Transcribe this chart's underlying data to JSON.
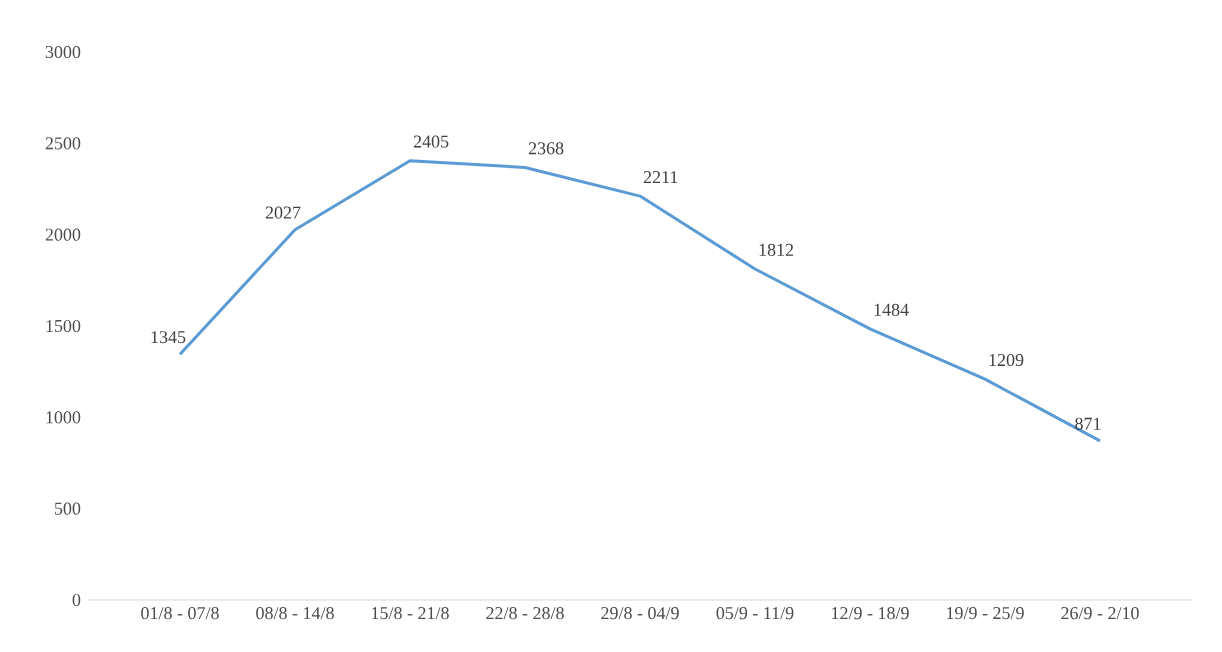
{
  "chart_data": {
    "type": "line",
    "categories": [
      "01/8 - 07/8",
      "08/8 - 14/8",
      "15/8 - 21/8",
      "22/8 - 28/8",
      "29/8 - 04/9",
      "05/9 - 11/9",
      "12/9 - 18/9",
      "19/9 - 25/9",
      "26/9 - 2/10"
    ],
    "values": [
      1345,
      2027,
      2405,
      2368,
      2211,
      1812,
      1484,
      1209,
      871
    ],
    "color": "#5b9bd5",
    "ylim": [
      0,
      3000
    ],
    "yticks": [
      0,
      500,
      1000,
      1500,
      2000,
      2500,
      3000
    ],
    "data_labels": true,
    "marker": "none",
    "line_style": "solid"
  }
}
